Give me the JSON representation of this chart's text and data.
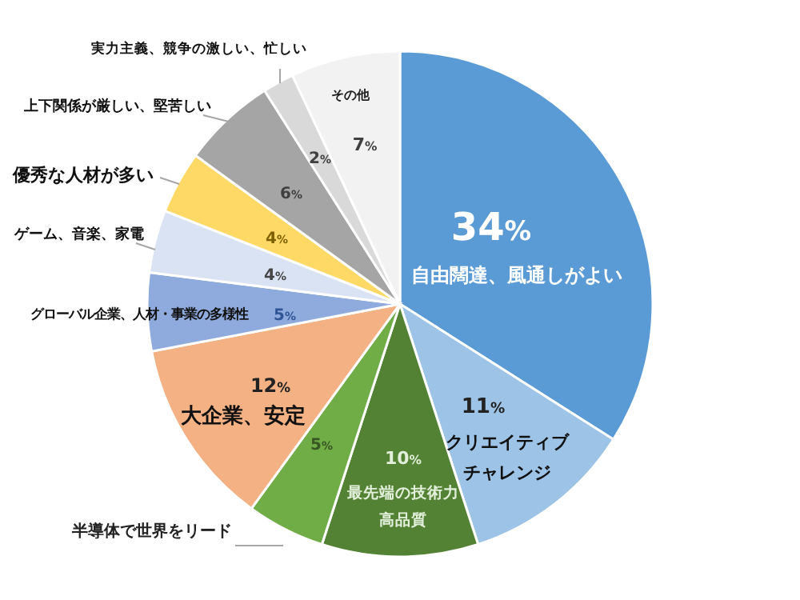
{
  "chart_data": {
    "type": "pie",
    "categories": [
      "自由闊達、風通しがよい",
      "クリエイティブチャレンジ",
      "最先端の技術力高品質",
      "半導体で世界をリード",
      "大企業、安定",
      "グローバル企業、人材・事業の多様性",
      "ゲーム、音楽、家電",
      "優秀な人材が多い",
      "上下関係が厳しい、堅苦しい",
      "実力主義、競争の激しい、忙しい",
      "その他"
    ],
    "values": [
      34,
      11,
      10,
      5,
      12,
      5,
      4,
      4,
      6,
      2,
      7
    ],
    "value_labels": [
      "34%",
      "11%",
      "10%",
      "5%",
      "12%",
      "5%",
      "4%",
      "4%",
      "6%",
      "2%",
      "7%"
    ],
    "colors": [
      "#5b9bd5",
      "#9dc3e6",
      "#548235",
      "#70ad47",
      "#f4b183",
      "#8faadc",
      "#dae3f3",
      "#ffd966",
      "#a5a5a5",
      "#d9d9d9",
      "#f2f2f2"
    ],
    "legend": false
  }
}
